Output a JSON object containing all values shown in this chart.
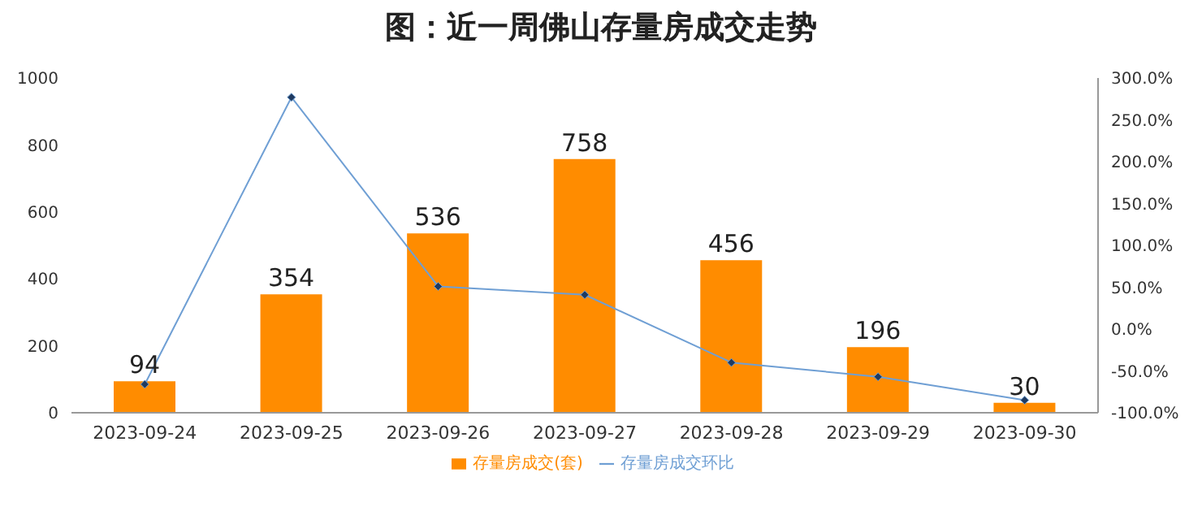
{
  "chart_data": {
    "type": "bar",
    "title": "图：近一周佛山存量房成交走势",
    "categories": [
      "2023-09-24",
      "2023-09-25",
      "2023-09-26",
      "2023-09-27",
      "2023-09-28",
      "2023-09-29",
      "2023-09-30"
    ],
    "series": [
      {
        "name": "存量房成交(套)",
        "color": "#ff8c00",
        "values": [
          94,
          354,
          536,
          758,
          456,
          196,
          30
        ],
        "value_labels": [
          "94",
          "354",
          "536",
          "758",
          "456",
          "196",
          "30"
        ]
      },
      {
        "name": "存量房成交环比",
        "type": "line",
        "axis": "y2",
        "color": "#6f9fd4",
        "values": [
          -66,
          277,
          51,
          41,
          -40,
          -57,
          -85
        ]
      }
    ],
    "ylim": [
      0,
      1000
    ],
    "yticks": [
      0,
      200,
      400,
      600,
      800,
      1000
    ],
    "y2lim": [
      -100,
      300
    ],
    "y2ticks": [
      {
        "value": -100,
        "label": "-100.0%"
      },
      {
        "value": -50,
        "label": "-50.0%"
      },
      {
        "value": 0,
        "label": "0.0%"
      },
      {
        "value": 50,
        "label": "50.0%"
      },
      {
        "value": 100,
        "label": "100.0%"
      },
      {
        "value": 150,
        "label": "150.0%"
      },
      {
        "value": 200,
        "label": "200.0%"
      },
      {
        "value": 250,
        "label": "250.0%"
      },
      {
        "value": 300,
        "label": "300.0%"
      }
    ],
    "grid": false,
    "legend": "bottom",
    "marker": "diamond",
    "line_style": "solid"
  }
}
